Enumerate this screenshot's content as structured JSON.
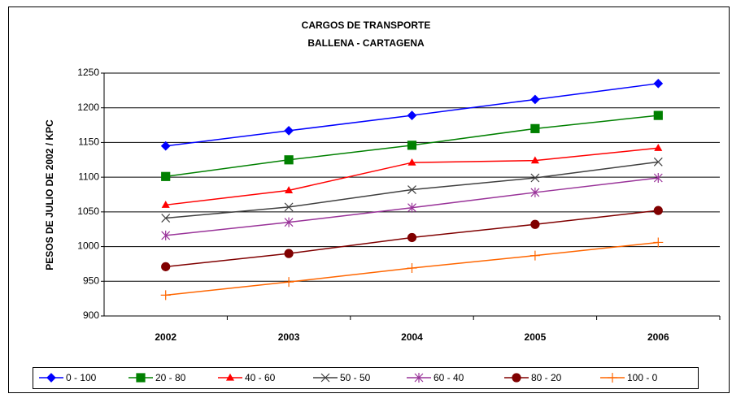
{
  "chart_data": {
    "type": "line",
    "title": "CARGOS DE TRANSPORTE",
    "subtitle": "BALLENA - CARTAGENA",
    "y_label": "PESOS DE JULIO DE 2002  / KPC",
    "categories": [
      "2002",
      "2003",
      "2004",
      "2005",
      "2006"
    ],
    "ylim": [
      900,
      1250
    ],
    "yticks": [
      900,
      950,
      1000,
      1050,
      1100,
      1150,
      1200,
      1250
    ],
    "grid": true,
    "legend": "bottom",
    "series": [
      {
        "name": "0 - 100",
        "color": "#0000ff",
        "marker": "diamond",
        "values": [
          1145,
          1167,
          1189,
          1212,
          1235
        ]
      },
      {
        "name": "20 - 80",
        "color": "#008000",
        "marker": "square",
        "values": [
          1101,
          1125,
          1146,
          1170,
          1189
        ]
      },
      {
        "name": "40 - 60",
        "color": "#ff0000",
        "marker": "triangle",
        "values": [
          1060,
          1081,
          1121,
          1124,
          1142
        ]
      },
      {
        "name": "50 - 50",
        "color": "#404040",
        "marker": "x",
        "values": [
          1041,
          1057,
          1082,
          1099,
          1122
        ]
      },
      {
        "name": "60 - 40",
        "color": "#993399",
        "marker": "star",
        "values": [
          1016,
          1035,
          1056,
          1078,
          1099
        ]
      },
      {
        "name": "80 - 20",
        "color": "#800000",
        "marker": "circle",
        "values": [
          971,
          990,
          1013,
          1032,
          1052
        ]
      },
      {
        "name": "100 - 0",
        "color": "#ff6600",
        "marker": "plus",
        "values": [
          930,
          949,
          969,
          987,
          1006
        ]
      }
    ]
  }
}
